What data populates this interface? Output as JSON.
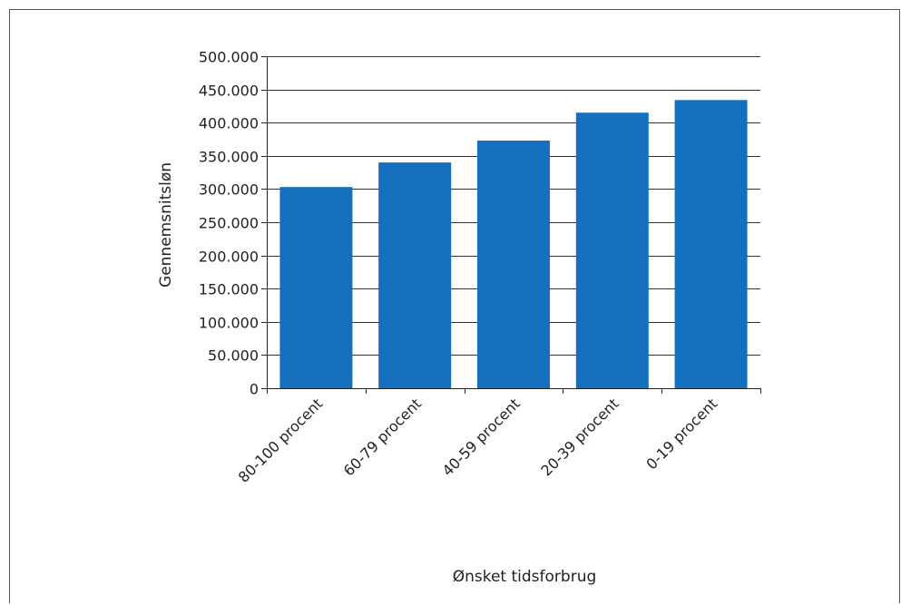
{
  "chart_data": {
    "type": "bar",
    "title": "",
    "xlabel": "Ønsket tidsforbrug",
    "ylabel": "Gennemsnitsløn",
    "categories": [
      "80-100 procent",
      "60-79 procent",
      "40-59 procent",
      "20-39 procent",
      "0-19 procent"
    ],
    "values": [
      303000,
      340000,
      373000,
      415000,
      434000
    ],
    "ylim": [
      0,
      500000
    ],
    "yticks": [
      0,
      50000,
      100000,
      150000,
      200000,
      250000,
      300000,
      350000,
      400000,
      450000,
      500000
    ],
    "ytick_labels": [
      "0",
      "50.000",
      "100.000",
      "150.000",
      "200.000",
      "250.000",
      "300.000",
      "350.000",
      "400.000",
      "450.000",
      "500.000"
    ],
    "grid": true,
    "bar_color": "#1470BE",
    "grid_color": "#333333"
  }
}
